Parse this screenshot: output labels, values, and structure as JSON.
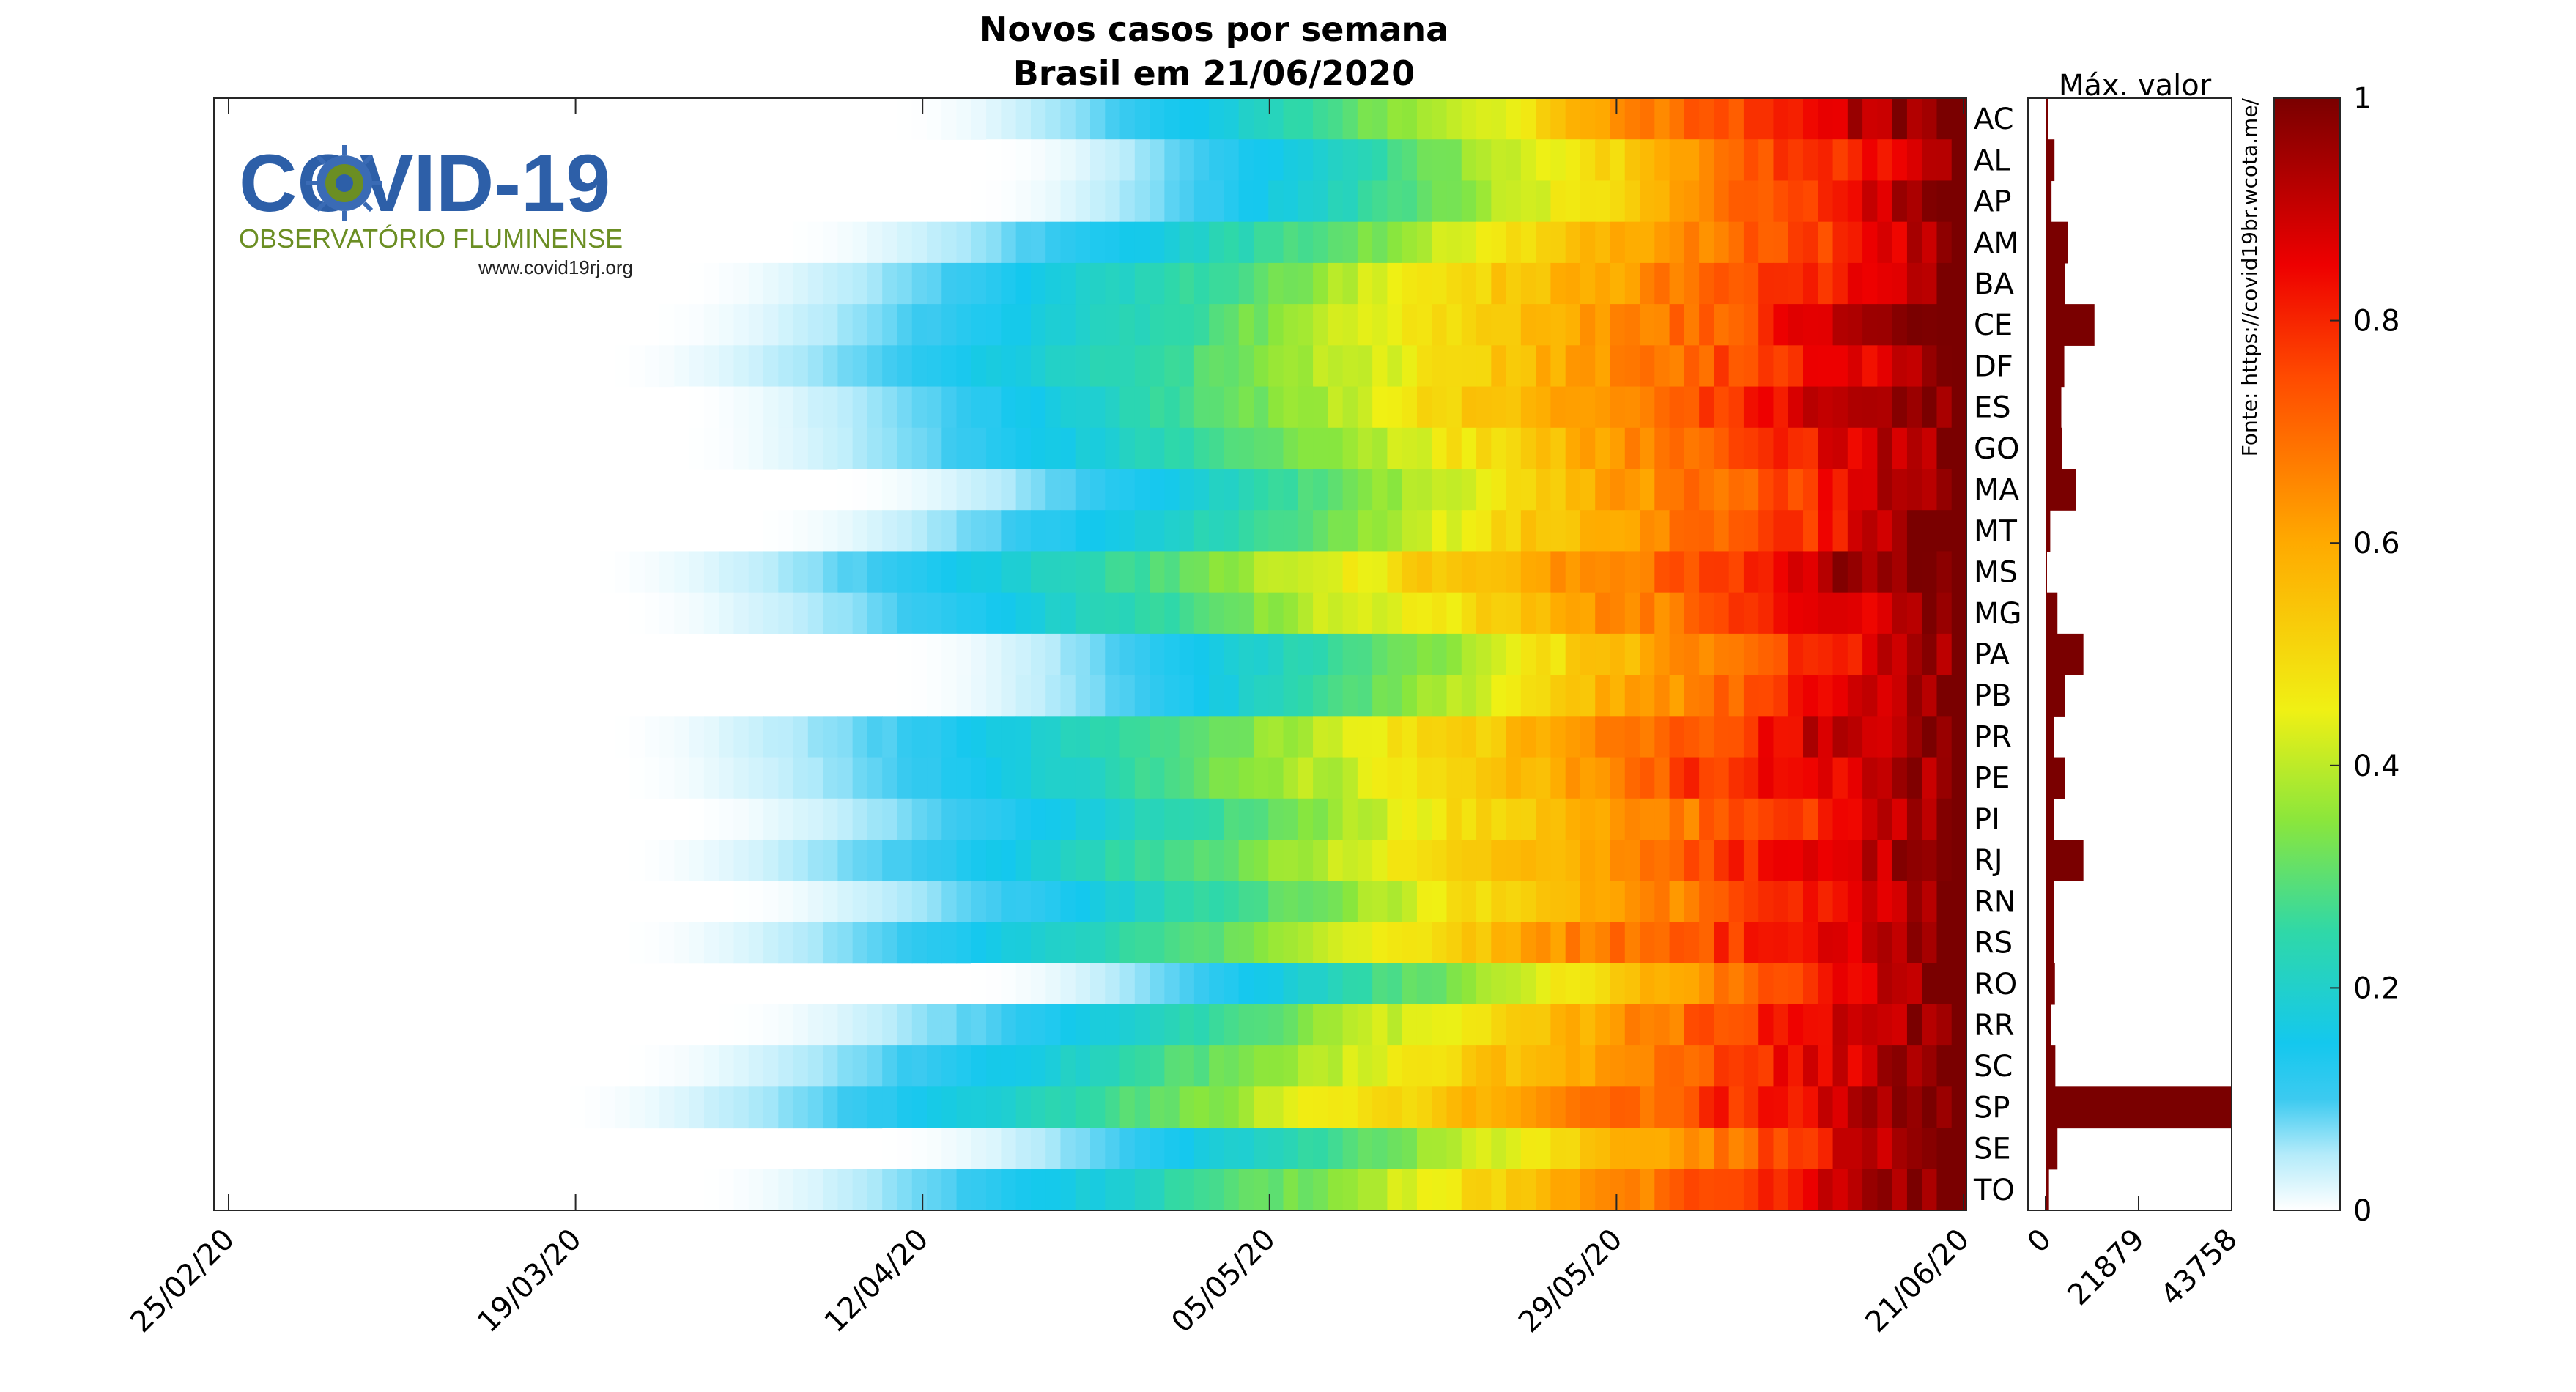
{
  "chart_data": {
    "type": "heatmap",
    "title": "Novos casos por semana",
    "subtitle": "Brasil em 21/06/2020",
    "x_tick_labels": [
      "25/02/20",
      "19/03/20",
      "12/04/20",
      "05/05/20",
      "29/05/20",
      "21/06/20"
    ],
    "states": [
      "AC",
      "AL",
      "AP",
      "AM",
      "BA",
      "CE",
      "DF",
      "ES",
      "GO",
      "MA",
      "MT",
      "MS",
      "MG",
      "PA",
      "PB",
      "PR",
      "PE",
      "PI",
      "RJ",
      "RN",
      "RS",
      "RO",
      "RR",
      "SC",
      "SP",
      "SE",
      "TO"
    ],
    "week_days": 7,
    "num_days": 118,
    "colorbar": {
      "ticks": [
        "0",
        "0.2",
        "0.4",
        "0.6",
        "0.8",
        "1"
      ],
      "range": [
        0,
        1
      ]
    },
    "bar_panel": {
      "title": "Máx. valor",
      "ticks": [
        "0",
        "21879",
        "43758"
      ],
      "range": [
        0,
        43758
      ],
      "max_values": [
        650,
        2100,
        1400,
        5300,
        4500,
        11500,
        4400,
        3700,
        3800,
        7200,
        1100,
        300,
        2800,
        8900,
        4500,
        1900,
        4600,
        2000,
        8900,
        1900,
        2000,
        2200,
        1300,
        2300,
        43758,
        2800,
        800
      ]
    },
    "rows": [
      {
        "state": "AC",
        "start": 45,
        "rise": 0.5,
        "peak": 0.86
      },
      {
        "state": "AL",
        "start": 51,
        "rise": 0.56,
        "peak": 0.94
      },
      {
        "state": "AP",
        "start": 50,
        "rise": 0.54,
        "peak": 0.92
      },
      {
        "state": "AM",
        "start": 37,
        "rise": 0.46,
        "peak": 0.84
      },
      {
        "state": "BA",
        "start": 30,
        "rise": 0.55,
        "peak": 0.88
      },
      {
        "state": "CE",
        "start": 28,
        "rise": 0.5,
        "peak": 0.9
      },
      {
        "state": "DF",
        "start": 25,
        "rise": 0.6,
        "peak": 0.95
      },
      {
        "state": "ES",
        "start": 30,
        "rise": 0.58,
        "peak": 0.92
      },
      {
        "state": "GO",
        "start": 30,
        "rise": 0.7,
        "peak": 0.97
      },
      {
        "state": "MA",
        "start": 41,
        "rise": 0.45,
        "peak": 0.78
      },
      {
        "state": "MT",
        "start": 35,
        "rise": 0.72,
        "peak": 0.98
      },
      {
        "state": "MS",
        "start": 24,
        "rise": 0.73,
        "peak": 0.98
      },
      {
        "state": "MG",
        "start": 26,
        "rise": 0.62,
        "peak": 0.95
      },
      {
        "state": "PA",
        "start": 45,
        "rise": 0.52,
        "peak": 0.86
      },
      {
        "state": "PB",
        "start": 45,
        "rise": 0.6,
        "peak": 0.93
      },
      {
        "state": "PR",
        "start": 25,
        "rise": 0.68,
        "peak": 0.97
      },
      {
        "state": "PE",
        "start": 26,
        "rise": 0.48,
        "peak": 0.82
      },
      {
        "state": "PI",
        "start": 30,
        "rise": 0.7,
        "peak": 0.97
      },
      {
        "state": "RJ",
        "start": 26,
        "rise": 0.5,
        "peak": 0.84
      },
      {
        "state": "RN",
        "start": 33,
        "rise": 0.62,
        "peak": 0.92
      },
      {
        "state": "RS",
        "start": 26,
        "rise": 0.6,
        "peak": 0.92
      },
      {
        "state": "RO",
        "start": 50,
        "rise": 0.6,
        "peak": 0.9
      },
      {
        "state": "RR",
        "start": 33,
        "rise": 0.64,
        "peak": 0.9
      },
      {
        "state": "SC",
        "start": 26,
        "rise": 0.62,
        "peak": 0.95
      },
      {
        "state": "SP",
        "start": 22,
        "rise": 0.56,
        "peak": 0.95
      },
      {
        "state": "SE",
        "start": 44,
        "rise": 0.7,
        "peak": 0.94
      },
      {
        "state": "TO",
        "start": 31,
        "rise": 0.52,
        "peak": 0.86
      }
    ]
  },
  "source_note": "Fonte: https://covid19br.wcota.me/",
  "logo": {
    "name": "COVID-19",
    "subtitle": "OBSERVATÓRIO FLUMINENSE",
    "url": "www.covid19rj.org"
  }
}
